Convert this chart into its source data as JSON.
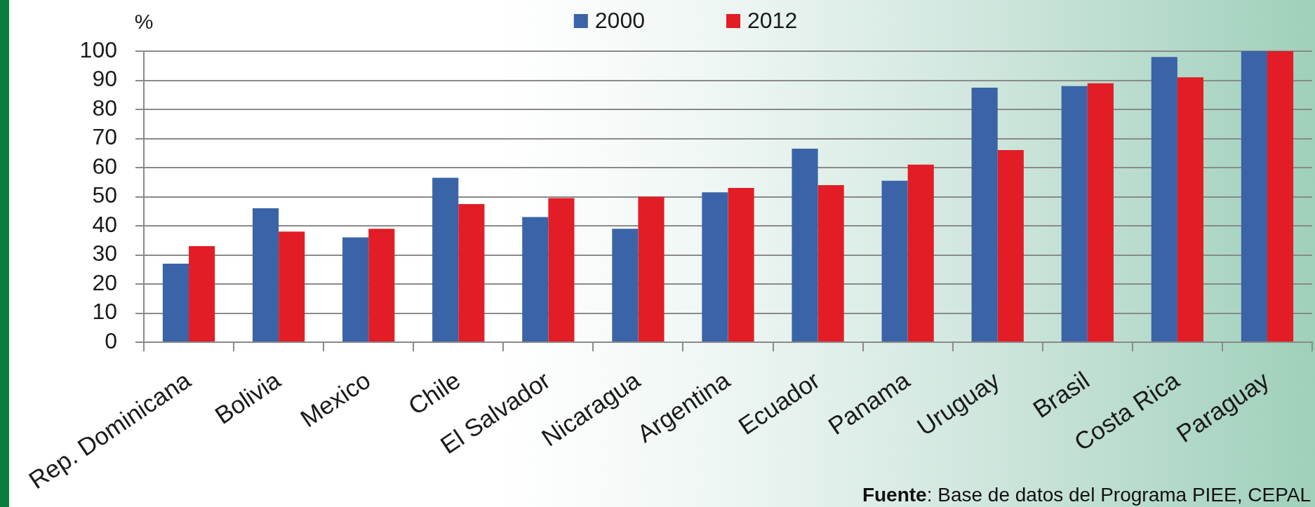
{
  "chart_data": {
    "type": "bar",
    "ylabel": "%",
    "categories": [
      "Rep. Dominicana",
      "Bolivia",
      "Mexico",
      "Chile",
      "El Salvador",
      "Nicaragua",
      "Argentina",
      "Ecuador",
      "Panama",
      "Uruguay",
      "Brasil",
      "Costa Rica",
      "Paraguay"
    ],
    "series": [
      {
        "name": "2000",
        "color": "#3b63a7",
        "values": [
          27,
          46,
          36,
          56.5,
          43,
          39,
          51.5,
          66.5,
          55.5,
          87.5,
          88,
          98,
          100
        ]
      },
      {
        "name": "2012",
        "color": "#e21d25",
        "values": [
          33,
          38,
          39,
          47.5,
          49.5,
          50,
          53,
          54,
          61,
          66,
          89,
          91,
          100
        ]
      }
    ],
    "ylim": [
      0,
      100
    ],
    "yticks": [
      0,
      10,
      20,
      30,
      40,
      50,
      60,
      70,
      80,
      90,
      100
    ],
    "grid": "y",
    "legend": "top",
    "annotations": [
      "Fuente: Base de datos del Programa PIEE, CEPAL"
    ]
  }
}
